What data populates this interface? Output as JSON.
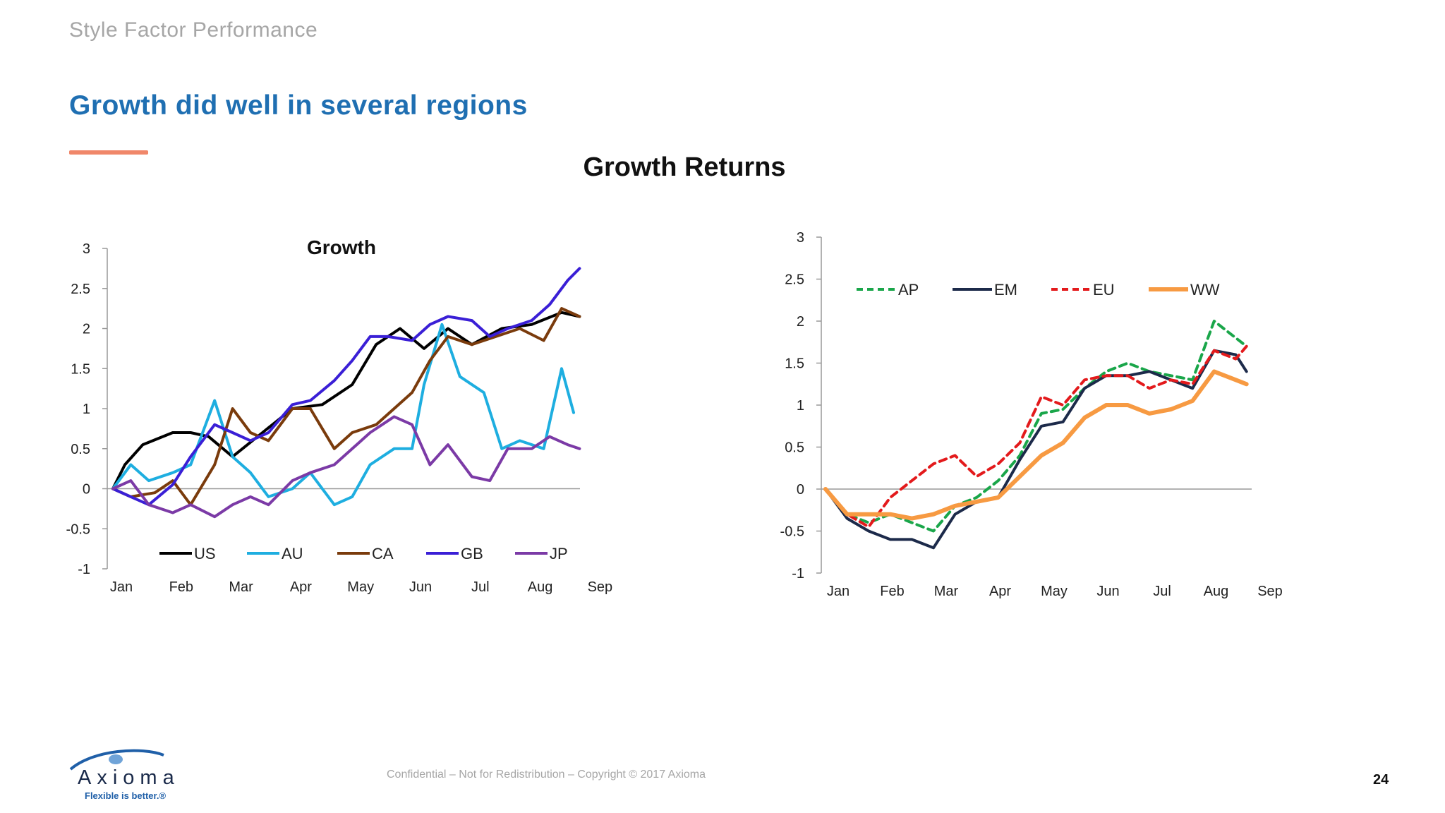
{
  "header": {
    "section_label": "Style Factor Performance",
    "headline": "Growth did well in several regions",
    "main_title": "Growth Returns"
  },
  "footer": {
    "confidential": "Confidential – Not for Redistribution – Copyright © 2017 Axioma",
    "page_number": "24",
    "logo_word": "Axioma",
    "logo_tagline": "Flexible is better.®"
  },
  "colors": {
    "headline": "#1f6fb2",
    "accent_bar": "#f0876a",
    "US": "#000000",
    "AU": "#1eaee0",
    "CA": "#7a3b0c",
    "GB": "#3a1fd6",
    "JP": "#7b3aa6",
    "AP": "#1aa64a",
    "EM": "#1c2a4a",
    "EU": "#e31a1c",
    "WW": "#f79a42"
  },
  "chart_data": [
    {
      "type": "line",
      "title": "Growth",
      "x_ticks": [
        "Jan",
        "Feb",
        "Mar",
        "Apr",
        "May",
        "Jun",
        "Jul",
        "Aug",
        "Sep"
      ],
      "y_ticks": [
        "3",
        "2.5",
        "2",
        "1.5",
        "1",
        "0.5",
        "0",
        "-0.5",
        "-1"
      ],
      "ylim": [
        -1,
        3
      ],
      "legend_position": "bottom",
      "series": [
        {
          "name": "US",
          "x": [
            0,
            0.2,
            0.5,
            1,
            1.3,
            1.6,
            2,
            2.5,
            3,
            3.5,
            4,
            4.4,
            4.8,
            5.2,
            5.6,
            6,
            6.5,
            7,
            7.5,
            7.8
          ],
          "values": [
            0,
            0.3,
            0.55,
            0.7,
            0.7,
            0.65,
            0.4,
            0.7,
            1.0,
            1.05,
            1.3,
            1.8,
            2.0,
            1.75,
            2.0,
            1.8,
            2.0,
            2.05,
            2.2,
            2.15
          ]
        },
        {
          "name": "AU",
          "x": [
            0,
            0.3,
            0.6,
            1,
            1.3,
            1.7,
            2.0,
            2.3,
            2.6,
            3,
            3.3,
            3.7,
            4,
            4.3,
            4.7,
            5.0,
            5.2,
            5.5,
            5.8,
            6.2,
            6.5,
            6.8,
            7.2,
            7.5,
            7.7
          ],
          "values": [
            0,
            0.3,
            0.1,
            0.2,
            0.3,
            1.1,
            0.4,
            0.2,
            -0.1,
            0.0,
            0.2,
            -0.2,
            -0.1,
            0.3,
            0.5,
            0.5,
            1.3,
            2.05,
            1.4,
            1.2,
            0.5,
            0.6,
            0.5,
            1.5,
            0.95
          ]
        },
        {
          "name": "CA",
          "x": [
            0,
            0.3,
            0.7,
            1,
            1.3,
            1.7,
            2,
            2.3,
            2.6,
            3,
            3.3,
            3.7,
            4,
            4.4,
            4.7,
            5.0,
            5.3,
            5.6,
            6,
            6.4,
            6.8,
            7.2,
            7.5,
            7.8
          ],
          "values": [
            0,
            -0.1,
            -0.05,
            0.1,
            -0.2,
            0.3,
            1.0,
            0.7,
            0.6,
            1.0,
            1.0,
            0.5,
            0.7,
            0.8,
            1.0,
            1.2,
            1.6,
            1.9,
            1.8,
            1.9,
            2.0,
            1.85,
            2.25,
            2.15
          ]
        },
        {
          "name": "GB",
          "x": [
            0,
            0.3,
            0.6,
            1,
            1.3,
            1.7,
            2,
            2.3,
            2.6,
            3,
            3.3,
            3.7,
            4,
            4.3,
            4.6,
            5,
            5.3,
            5.6,
            6,
            6.3,
            6.6,
            7,
            7.3,
            7.6,
            7.8
          ],
          "values": [
            0,
            -0.1,
            -0.2,
            0.05,
            0.4,
            0.8,
            0.7,
            0.6,
            0.7,
            1.05,
            1.1,
            1.35,
            1.6,
            1.9,
            1.9,
            1.85,
            2.05,
            2.15,
            2.1,
            1.9,
            2.0,
            2.1,
            2.3,
            2.6,
            2.75
          ]
        },
        {
          "name": "JP",
          "x": [
            0,
            0.3,
            0.6,
            1,
            1.3,
            1.7,
            2,
            2.3,
            2.6,
            3,
            3.3,
            3.7,
            4,
            4.3,
            4.7,
            5,
            5.3,
            5.6,
            6,
            6.3,
            6.6,
            7,
            7.3,
            7.6,
            7.8
          ],
          "values": [
            0,
            0.1,
            -0.2,
            -0.3,
            -0.2,
            -0.35,
            -0.2,
            -0.1,
            -0.2,
            0.1,
            0.2,
            0.3,
            0.5,
            0.7,
            0.9,
            0.8,
            0.3,
            0.55,
            0.15,
            0.1,
            0.5,
            0.5,
            0.65,
            0.55,
            0.5
          ]
        }
      ]
    },
    {
      "type": "line",
      "title": "",
      "x_ticks": [
        "Jan",
        "Feb",
        "Mar",
        "Apr",
        "May",
        "Jun",
        "Jul",
        "Aug",
        "Sep"
      ],
      "y_ticks": [
        "3",
        "2.5",
        "2",
        "1.5",
        "1",
        "0.5",
        "0",
        "-0.5",
        "-1"
      ],
      "ylim": [
        -1,
        3
      ],
      "legend_position": "top",
      "series": [
        {
          "name": "AP",
          "dashed": true,
          "x": [
            0,
            0.4,
            0.8,
            1.2,
            1.6,
            2.0,
            2.4,
            2.8,
            3.2,
            3.6,
            4.0,
            4.4,
            4.8,
            5.2,
            5.6,
            6.0,
            6.4,
            6.8,
            7.2,
            7.6,
            7.8
          ],
          "values": [
            0,
            -0.3,
            -0.4,
            -0.3,
            -0.4,
            -0.5,
            -0.2,
            -0.1,
            0.1,
            0.4,
            0.9,
            0.95,
            1.2,
            1.4,
            1.5,
            1.4,
            1.35,
            1.3,
            2.0,
            1.8,
            1.7
          ]
        },
        {
          "name": "EM",
          "dashed": false,
          "x": [
            0,
            0.4,
            0.8,
            1.2,
            1.6,
            2.0,
            2.4,
            2.8,
            3.2,
            3.6,
            4.0,
            4.4,
            4.8,
            5.2,
            5.6,
            6.0,
            6.4,
            6.8,
            7.2,
            7.6,
            7.8
          ],
          "values": [
            0,
            -0.35,
            -0.5,
            -0.6,
            -0.6,
            -0.7,
            -0.3,
            -0.15,
            -0.1,
            0.35,
            0.75,
            0.8,
            1.2,
            1.35,
            1.35,
            1.4,
            1.3,
            1.2,
            1.65,
            1.6,
            1.4
          ]
        },
        {
          "name": "EU",
          "dashed": true,
          "x": [
            0,
            0.4,
            0.8,
            1.2,
            1.6,
            2.0,
            2.4,
            2.8,
            3.2,
            3.6,
            4.0,
            4.4,
            4.8,
            5.2,
            5.6,
            6.0,
            6.4,
            6.8,
            7.2,
            7.6,
            7.8
          ],
          "values": [
            0,
            -0.3,
            -0.45,
            -0.1,
            0.1,
            0.3,
            0.4,
            0.15,
            0.3,
            0.55,
            1.1,
            1.0,
            1.3,
            1.35,
            1.35,
            1.2,
            1.3,
            1.25,
            1.65,
            1.55,
            1.7
          ]
        },
        {
          "name": "WW",
          "dashed": false,
          "x": [
            0,
            0.4,
            0.8,
            1.2,
            1.6,
            2.0,
            2.4,
            2.8,
            3.2,
            3.6,
            4.0,
            4.4,
            4.8,
            5.2,
            5.6,
            6.0,
            6.4,
            6.8,
            7.2,
            7.6,
            7.8
          ],
          "values": [
            0,
            -0.3,
            -0.3,
            -0.3,
            -0.35,
            -0.3,
            -0.2,
            -0.15,
            -0.1,
            0.15,
            0.4,
            0.55,
            0.85,
            1.0,
            1.0,
            0.9,
            0.95,
            1.05,
            1.4,
            1.3,
            1.25
          ]
        }
      ]
    }
  ]
}
